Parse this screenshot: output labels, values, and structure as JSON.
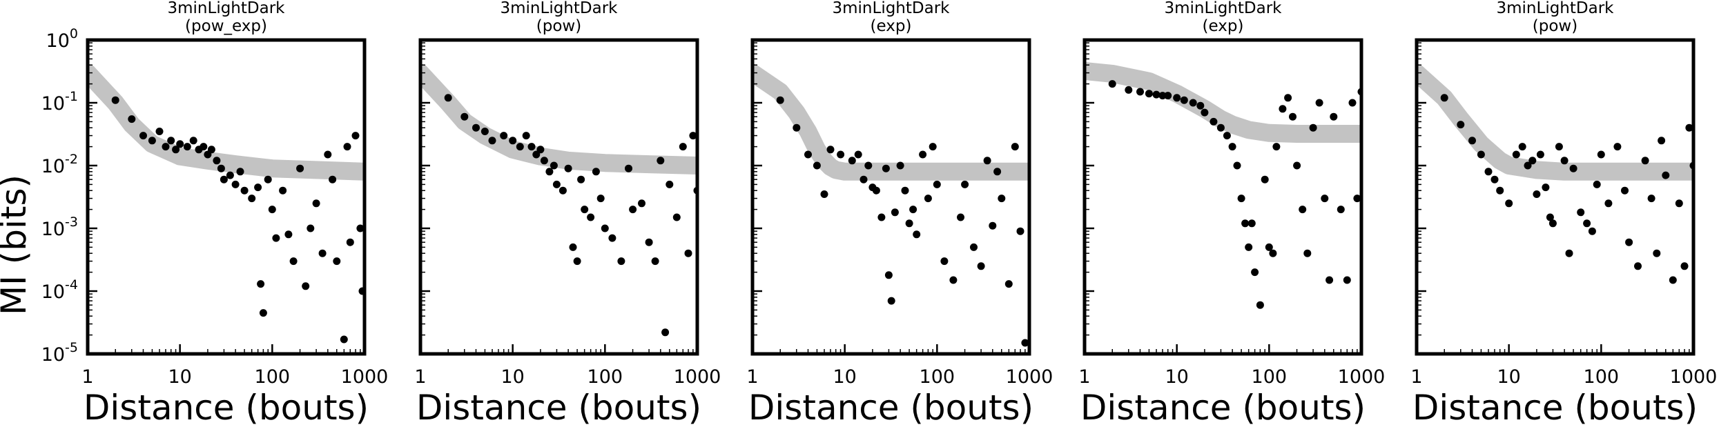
{
  "figure": {
    "ylabel": "MI (bits)",
    "xlabel": "Distance (bouts)"
  },
  "chart_data": [
    {
      "type": "scatter",
      "title": "3minLightDark",
      "subtitle": "(pow_exp)",
      "xlabel": "Distance (bouts)",
      "ylabel": "MI (bits)",
      "xscale": "log",
      "yscale": "log",
      "xlim": [
        1,
        1000
      ],
      "ylim": [
        1e-05,
        1
      ],
      "xticks": [
        "1",
        "10",
        "100",
        "1000"
      ],
      "yticks": [
        "10^0",
        "10^-1",
        "10^-2",
        "10^-3",
        "10^-4",
        "10^-5"
      ],
      "fit_color": "#c3c3c3",
      "point_color": "#000000",
      "fit": {
        "x": [
          1,
          2,
          3,
          5,
          10,
          20,
          40,
          100,
          300,
          1000
        ],
        "y": [
          0.3,
          0.1,
          0.045,
          0.022,
          0.014,
          0.012,
          0.0105,
          0.009,
          0.0085,
          0.008
        ]
      },
      "points": {
        "x": [
          2,
          3,
          4,
          5,
          6,
          7,
          8,
          9,
          10,
          12,
          14,
          16,
          18,
          20,
          22,
          25,
          28,
          30,
          35,
          40,
          45,
          50,
          60,
          70,
          75,
          80,
          90,
          100,
          110,
          130,
          150,
          170,
          200,
          230,
          260,
          300,
          350,
          400,
          450,
          500,
          600,
          650,
          700,
          800,
          900,
          950
        ],
        "y": [
          0.11,
          0.055,
          0.03,
          0.025,
          0.035,
          0.02,
          0.025,
          0.018,
          0.022,
          0.02,
          0.025,
          0.018,
          0.02,
          0.015,
          0.018,
          0.012,
          0.009,
          0.006,
          0.007,
          0.005,
          0.008,
          0.004,
          0.003,
          0.0045,
          0.00013,
          4.5e-05,
          0.006,
          0.002,
          0.0007,
          0.004,
          0.0008,
          0.0003,
          0.009,
          0.00012,
          0.001,
          0.0025,
          0.0004,
          0.015,
          0.006,
          0.0003,
          1.7e-05,
          0.02,
          0.0006,
          0.03,
          0.001,
          0.0001
        ]
      }
    },
    {
      "type": "scatter",
      "title": "3minLightDark",
      "subtitle": "(pow)",
      "xlabel": "Distance (bouts)",
      "xscale": "log",
      "yscale": "log",
      "xlim": [
        1,
        1000
      ],
      "ylim": [
        1e-05,
        1
      ],
      "xticks": [
        "1",
        "10",
        "100",
        "1000"
      ],
      "fit_color": "#c3c3c3",
      "point_color": "#000000",
      "fit": {
        "x": [
          1,
          2,
          3,
          5,
          10,
          20,
          40,
          100,
          300,
          1000
        ],
        "y": [
          0.3,
          0.1,
          0.05,
          0.03,
          0.018,
          0.014,
          0.012,
          0.011,
          0.0105,
          0.01
        ]
      },
      "points": {
        "x": [
          2,
          3,
          4,
          5,
          6,
          8,
          10,
          12,
          14,
          16,
          18,
          20,
          22,
          25,
          28,
          30,
          35,
          40,
          45,
          50,
          55,
          60,
          70,
          80,
          90,
          100,
          120,
          150,
          180,
          200,
          250,
          300,
          350,
          400,
          450,
          500,
          600,
          700,
          800,
          900,
          1000
        ],
        "y": [
          0.12,
          0.06,
          0.04,
          0.035,
          0.025,
          0.03,
          0.025,
          0.02,
          0.03,
          0.02,
          0.015,
          0.018,
          0.012,
          0.008,
          0.01,
          0.005,
          0.004,
          0.009,
          0.0005,
          0.0003,
          0.006,
          0.002,
          0.0015,
          0.008,
          0.003,
          0.001,
          0.0007,
          0.0003,
          0.009,
          0.002,
          0.0025,
          0.0006,
          0.0003,
          0.012,
          2.2e-05,
          0.005,
          0.0015,
          0.02,
          0.0004,
          0.03,
          0.004
        ]
      }
    },
    {
      "type": "scatter",
      "title": "3minLightDark",
      "subtitle": "(exp)",
      "xlabel": "Distance (bouts)",
      "xscale": "log",
      "yscale": "log",
      "xlim": [
        1,
        1000
      ],
      "ylim": [
        1e-05,
        1
      ],
      "xticks": [
        "1",
        "10",
        "100",
        "1000"
      ],
      "fit_color": "#c3c3c3",
      "point_color": "#000000",
      "fit": {
        "x": [
          1,
          2,
          3,
          4,
          5,
          6,
          7,
          8,
          10,
          15,
          20,
          40,
          100,
          300,
          1000
        ],
        "y": [
          0.3,
          0.15,
          0.07,
          0.035,
          0.018,
          0.012,
          0.0095,
          0.0085,
          0.008,
          0.008,
          0.008,
          0.008,
          0.008,
          0.008,
          0.008
        ]
      },
      "points": {
        "x": [
          2,
          3,
          4,
          5,
          6,
          7,
          9,
          12,
          14,
          16,
          18,
          20,
          22,
          25,
          28,
          30,
          32,
          35,
          40,
          45,
          50,
          55,
          60,
          70,
          80,
          90,
          100,
          120,
          150,
          180,
          200,
          250,
          300,
          350,
          400,
          450,
          500,
          600,
          700,
          800,
          900
        ],
        "y": [
          0.11,
          0.04,
          0.015,
          0.01,
          0.0035,
          0.018,
          0.015,
          0.012,
          0.015,
          0.006,
          0.01,
          0.0045,
          0.004,
          0.0015,
          0.009,
          0.00018,
          7e-05,
          0.0018,
          0.01,
          0.004,
          0.0012,
          0.002,
          0.0008,
          0.015,
          0.003,
          0.02,
          0.005,
          0.0003,
          0.00015,
          0.0015,
          0.005,
          0.0005,
          0.00025,
          0.012,
          0.0011,
          0.008,
          0.003,
          0.00013,
          0.02,
          0.0009,
          1.5e-05
        ]
      }
    },
    {
      "type": "scatter",
      "title": "3minLightDark",
      "subtitle": "(exp)",
      "xlabel": "Distance (bouts)",
      "xscale": "log",
      "yscale": "log",
      "xlim": [
        1,
        1000
      ],
      "ylim": [
        1e-05,
        1
      ],
      "xticks": [
        "1",
        "10",
        "100",
        "1000"
      ],
      "fit_color": "#c3c3c3",
      "point_color": "#000000",
      "fit": {
        "x": [
          1,
          2,
          5,
          10,
          20,
          30,
          40,
          60,
          100,
          200,
          500,
          1000
        ],
        "y": [
          0.32,
          0.29,
          0.22,
          0.14,
          0.08,
          0.055,
          0.045,
          0.037,
          0.033,
          0.032,
          0.032,
          0.032
        ]
      },
      "points": {
        "x": [
          2,
          3,
          4,
          5,
          6,
          7,
          8,
          10,
          12,
          15,
          18,
          20,
          25,
          30,
          35,
          40,
          45,
          50,
          55,
          60,
          65,
          70,
          80,
          90,
          100,
          110,
          120,
          140,
          160,
          180,
          200,
          230,
          260,
          300,
          350,
          400,
          450,
          500,
          600,
          700,
          800,
          900,
          1000
        ],
        "y": [
          0.2,
          0.16,
          0.15,
          0.14,
          0.135,
          0.13,
          0.13,
          0.12,
          0.11,
          0.1,
          0.09,
          0.07,
          0.05,
          0.04,
          0.03,
          0.02,
          0.01,
          0.003,
          0.0012,
          0.0005,
          0.0012,
          0.0002,
          6e-05,
          0.006,
          0.0005,
          0.0004,
          0.02,
          0.08,
          0.12,
          0.06,
          0.01,
          0.002,
          0.0004,
          0.04,
          0.1,
          0.003,
          0.00015,
          0.06,
          0.002,
          0.00015,
          0.1,
          0.003,
          0.15
        ]
      }
    },
    {
      "type": "scatter",
      "title": "3minLightDark",
      "subtitle": "(pow)",
      "xlabel": "Distance (bouts)",
      "xscale": "log",
      "yscale": "log",
      "xlim": [
        1,
        1000
      ],
      "ylim": [
        1e-05,
        1
      ],
      "xticks": [
        "1",
        "10",
        "100",
        "1000"
      ],
      "fit_color": "#c3c3c3",
      "point_color": "#000000",
      "fit": {
        "x": [
          1,
          2,
          3,
          5,
          8,
          10,
          20,
          40,
          100,
          300,
          1000
        ],
        "y": [
          0.3,
          0.12,
          0.055,
          0.022,
          0.012,
          0.01,
          0.0085,
          0.008,
          0.008,
          0.008,
          0.008
        ]
      },
      "points": {
        "x": [
          2,
          3,
          4,
          5,
          6,
          7,
          8,
          10,
          12,
          14,
          16,
          18,
          20,
          22,
          25,
          28,
          30,
          35,
          40,
          45,
          50,
          60,
          70,
          80,
          90,
          100,
          120,
          150,
          180,
          200,
          250,
          300,
          350,
          400,
          450,
          500,
          600,
          700,
          800,
          900,
          1000
        ],
        "y": [
          0.12,
          0.045,
          0.025,
          0.015,
          0.008,
          0.006,
          0.004,
          0.0025,
          0.015,
          0.02,
          0.01,
          0.012,
          0.0035,
          0.015,
          0.0045,
          0.0015,
          0.0012,
          0.02,
          0.012,
          0.0004,
          0.009,
          0.0018,
          0.0012,
          0.0009,
          0.005,
          0.015,
          0.0025,
          0.02,
          0.004,
          0.0006,
          0.00025,
          0.012,
          0.003,
          0.0004,
          0.025,
          0.007,
          0.00015,
          0.0025,
          0.00025,
          0.04,
          0.01
        ]
      }
    }
  ]
}
